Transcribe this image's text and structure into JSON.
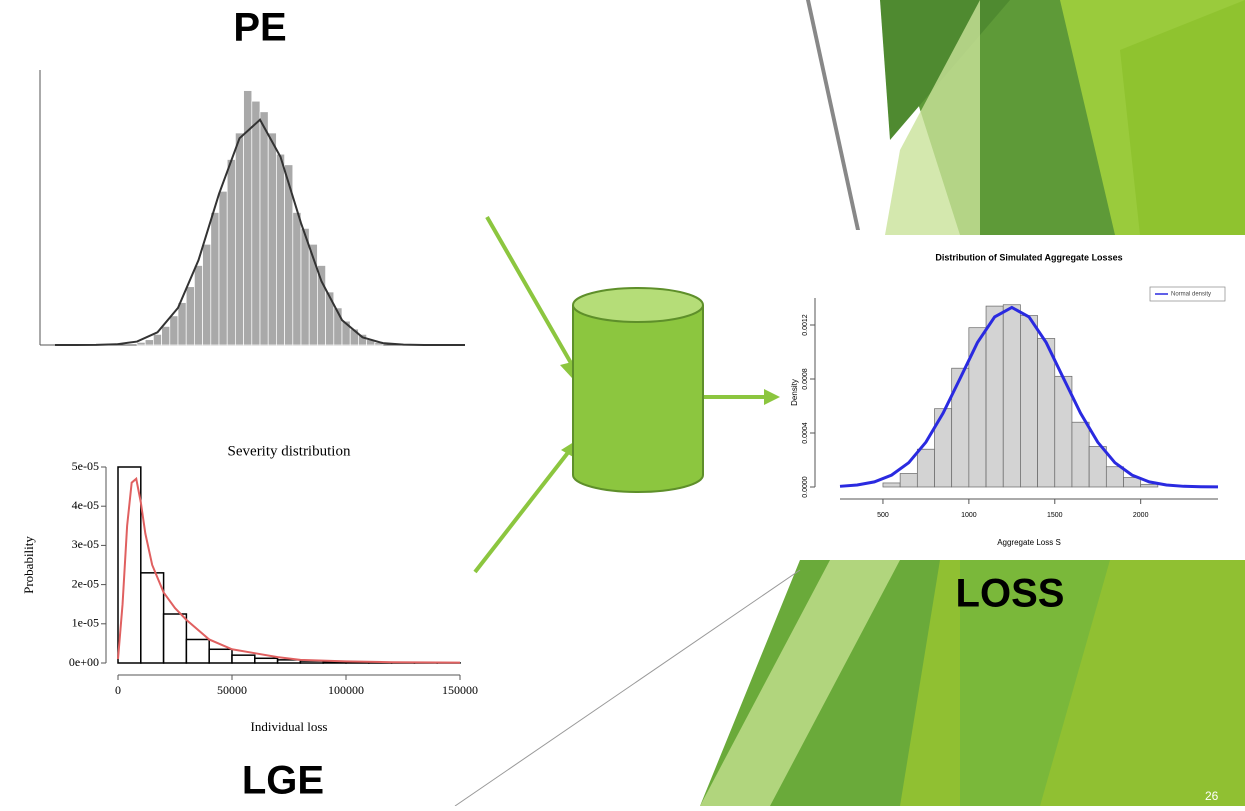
{
  "labels": {
    "pe": "PE",
    "lge": "LGE",
    "loss": "LOSS",
    "page_number": "26"
  },
  "chart_data": [
    {
      "type": "histogram",
      "color": "#a9a9a9",
      "bins": [
        20,
        22,
        24,
        26,
        28,
        30,
        32,
        34,
        36,
        38,
        40,
        42,
        44,
        46,
        48,
        50,
        52,
        54,
        56,
        58,
        60,
        62,
        64,
        66,
        68,
        70,
        72,
        74,
        76,
        78,
        80
      ],
      "values": [
        1,
        2,
        4,
        7,
        11,
        16,
        22,
        30,
        38,
        50,
        58,
        70,
        80,
        96,
        92,
        88,
        80,
        72,
        68,
        50,
        44,
        38,
        30,
        20,
        14,
        9,
        6,
        4,
        2,
        1
      ],
      "curve": {
        "color": "#333333",
        "x": [
          0,
          5,
          10,
          15,
          20,
          25,
          30,
          35,
          40,
          45,
          50,
          55,
          60,
          65,
          70,
          75,
          80,
          85,
          90,
          95,
          100
        ],
        "y": [
          0,
          0,
          0.04,
          0.26,
          1.3,
          4.8,
          14,
          32,
          57,
          78,
          85,
          71,
          46,
          24,
          9.4,
          2.9,
          0.7,
          0.13,
          0.02,
          0,
          0
        ]
      },
      "xlim": [
        0,
        100
      ],
      "ylim": [
        0,
        100
      ]
    },
    {
      "type": "histogram",
      "title": "Severity distribution",
      "x_label": "Individual loss",
      "y_label": "Probability",
      "color": "#ffffff",
      "bins": [
        0,
        10000,
        20000,
        30000,
        40000,
        50000,
        60000,
        70000,
        80000,
        90000,
        100000,
        110000,
        120000,
        130000,
        140000,
        150000
      ],
      "values": [
        5e-05,
        2.3e-05,
        1.25e-05,
        6e-06,
        3.5e-06,
        2e-06,
        1.2e-06,
        8e-07,
        5e-07,
        3e-07,
        2e-07,
        1.5e-07,
        1e-07,
        1e-07,
        5e-08
      ],
      "curve": {
        "color": "#e06060",
        "x": [
          0,
          2000,
          4000,
          6000,
          8000,
          10000,
          12000,
          15000,
          20000,
          25000,
          30000,
          40000,
          50000,
          60000,
          70000,
          80000,
          100000,
          120000,
          150000
        ],
        "y": [
          1e-06,
          1.5e-05,
          3.5e-05,
          4.6e-05,
          4.7e-05,
          4.1e-05,
          3.3e-05,
          2.5e-05,
          1.8e-05,
          1.4e-05,
          1.1e-05,
          6e-06,
          3.5e-06,
          2.5e-06,
          1.5e-06,
          8e-07,
          4e-07,
          2e-07,
          1e-07
        ]
      },
      "xlim": [
        0,
        150000
      ],
      "ylim": [
        0,
        5e-05
      ],
      "xticks": [
        0,
        50000,
        100000,
        150000
      ],
      "yticks": [
        {
          "value": 0,
          "label": "0e+00"
        },
        {
          "value": 1e-05,
          "label": "1e-05"
        },
        {
          "value": 2e-05,
          "label": "2e-05"
        },
        {
          "value": 3e-05,
          "label": "3e-05"
        },
        {
          "value": 4e-05,
          "label": "4e-05"
        },
        {
          "value": 5e-05,
          "label": "5e-05"
        }
      ]
    },
    {
      "type": "histogram",
      "title": "Distribution of Simulated Aggregate Losses",
      "x_label": "Aggregate Loss S",
      "y_label": "Density",
      "color": "#d3d3d3",
      "bins": [
        500,
        600,
        700,
        800,
        900,
        1000,
        1100,
        1200,
        1300,
        1400,
        1500,
        1600,
        1700,
        1800,
        1900,
        2000,
        2100
      ],
      "values": [
        3e-05,
        0.0001,
        0.00028,
        0.00058,
        0.00088,
        0.00118,
        0.00134,
        0.00135,
        0.00127,
        0.0011,
        0.00082,
        0.00048,
        0.0003,
        0.00015,
        7e-05,
        2e-05
      ],
      "curve": {
        "name": "Normal density",
        "color": "#2a2ae0",
        "x": [
          250,
          350,
          450,
          550,
          650,
          750,
          850,
          950,
          1050,
          1150,
          1250,
          1350,
          1450,
          1550,
          1650,
          1750,
          1850,
          1950,
          2050,
          2150,
          2250,
          2350,
          2450
        ],
        "y": [
          5.1e-06,
          1.48e-05,
          3.79e-05,
          8.78e-05,
          0.00018,
          0.000332,
          0.000547,
          0.000807,
          0.00107,
          0.00126,
          0.00133,
          0.00126,
          0.00107,
          0.000807,
          0.000547,
          0.000332,
          0.00018,
          8.78e-05,
          3.79e-05,
          1.48e-05,
          5.1e-06,
          1.6e-06,
          5e-07
        ]
      },
      "xlim": [
        250,
        2450
      ],
      "ylim": [
        0,
        0.0014
      ],
      "xticks": [
        500,
        1000,
        1500,
        2000
      ],
      "yticks": [
        {
          "value": 0,
          "label": "0.0000"
        },
        {
          "value": 0.0004,
          "label": "0.0004"
        },
        {
          "value": 0.0008,
          "label": "0.0008"
        },
        {
          "value": 0.0012,
          "label": "0.0012"
        }
      ]
    }
  ]
}
